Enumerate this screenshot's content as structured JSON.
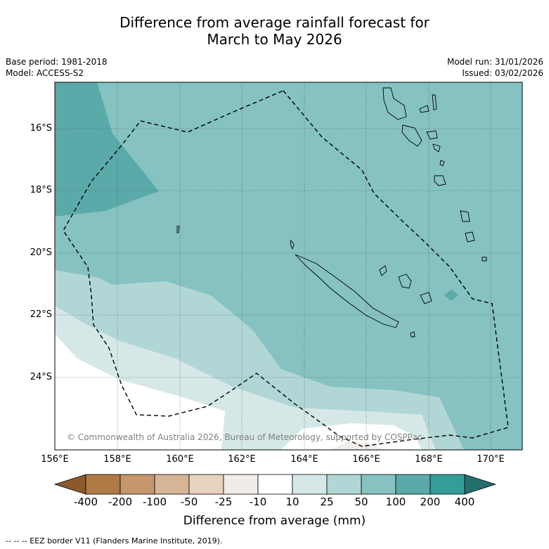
{
  "title_line1": "Difference from average rainfall forecast for",
  "title_line2": "March to May 2026",
  "base_period": "Base period: 1981-2018",
  "model": "Model: ACCESS-S2",
  "model_run": "Model run: 31/01/2026",
  "issued": "Issued: 03/02/2026",
  "lat_labels": [
    "16°S",
    "18°S",
    "20°S",
    "22°S",
    "24°S"
  ],
  "lon_labels": [
    "156°E",
    "158°E",
    "160°E",
    "162°E",
    "164°E",
    "166°E",
    "168°E",
    "170°E"
  ],
  "copyright": "© Commonwealth of Australia 2026, Bureau of Meteorology, supported by COSPPac",
  "colorbar": {
    "labels": [
      "-400",
      "-200",
      "-100",
      "-50",
      "-25",
      "-10",
      "10",
      "25",
      "50",
      "100",
      "200",
      "400"
    ],
    "colors": [
      "#8c5a2a",
      "#b07a45",
      "#c4966a",
      "#d6b496",
      "#e6d3c0",
      "#f0ece8",
      "#ffffff",
      "#d5e8e7",
      "#b0d7d6",
      "#85c2c1",
      "#5aaaa9",
      "#369c98",
      "#246f6d"
    ],
    "title": "Difference from average (mm)"
  },
  "footer": "-- -- -- EEZ border V11 (Flanders Marine Institute, 2019).",
  "icons": [
    "map-image"
  ]
}
